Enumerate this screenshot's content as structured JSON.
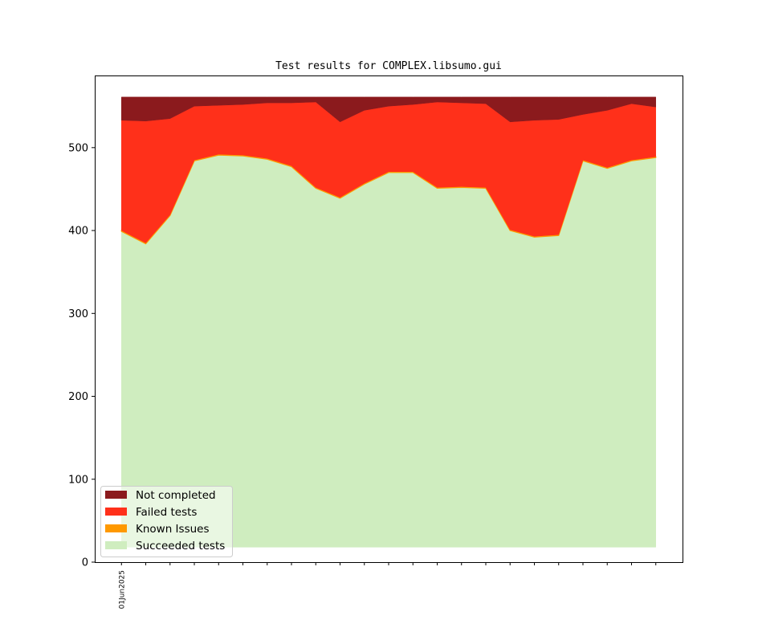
{
  "chart_data": {
    "type": "area",
    "stacked": true,
    "title": "Test results for COMPLEX.libsumo.gui",
    "xlabel": "",
    "ylabel": "",
    "x": [
      0,
      1,
      2,
      3,
      4,
      5,
      6,
      7,
      8,
      9,
      10,
      11,
      12,
      13,
      14,
      15,
      16,
      17,
      18,
      19,
      20,
      21,
      22
    ],
    "xticklabels": [
      "01Jun2025"
    ],
    "xlim": [
      -1.1,
      23.1
    ],
    "ylim": [
      0,
      587
    ],
    "yticks": [
      0,
      100,
      200,
      300,
      400,
      500
    ],
    "baseline": 18,
    "legend_position": "lower-left",
    "series": [
      {
        "name": "Succeeded tests",
        "color": "#cfedbf",
        "values": [
          381,
          366,
          400,
          466,
          473,
          472,
          468,
          459,
          433,
          421,
          438,
          452,
          452,
          433,
          434,
          433,
          382,
          374,
          376,
          466,
          457,
          466,
          470
        ]
      },
      {
        "name": "Known Issues",
        "color": "#ff9900",
        "values": [
          1,
          1,
          1,
          1,
          1,
          1,
          1,
          1,
          1,
          1,
          1,
          1,
          1,
          1,
          1,
          1,
          1,
          1,
          1,
          1,
          1,
          1,
          1
        ]
      },
      {
        "name": "Failed tests",
        "color": "#ff301a",
        "values": [
          133,
          147,
          116,
          65,
          59,
          61,
          67,
          76,
          103,
          91,
          88,
          79,
          81,
          103,
          101,
          101,
          130,
          140,
          139,
          55,
          69,
          68,
          60
        ]
      },
      {
        "name": "Not completed",
        "color": "#8b1a1d",
        "values": [
          28,
          29,
          26,
          11,
          10,
          9,
          7,
          7,
          6,
          30,
          16,
          11,
          9,
          6,
          7,
          8,
          30,
          28,
          27,
          21,
          16,
          8,
          12
        ]
      }
    ],
    "legend_order": [
      "Not completed",
      "Failed tests",
      "Known Issues",
      "Succeeded tests"
    ]
  }
}
